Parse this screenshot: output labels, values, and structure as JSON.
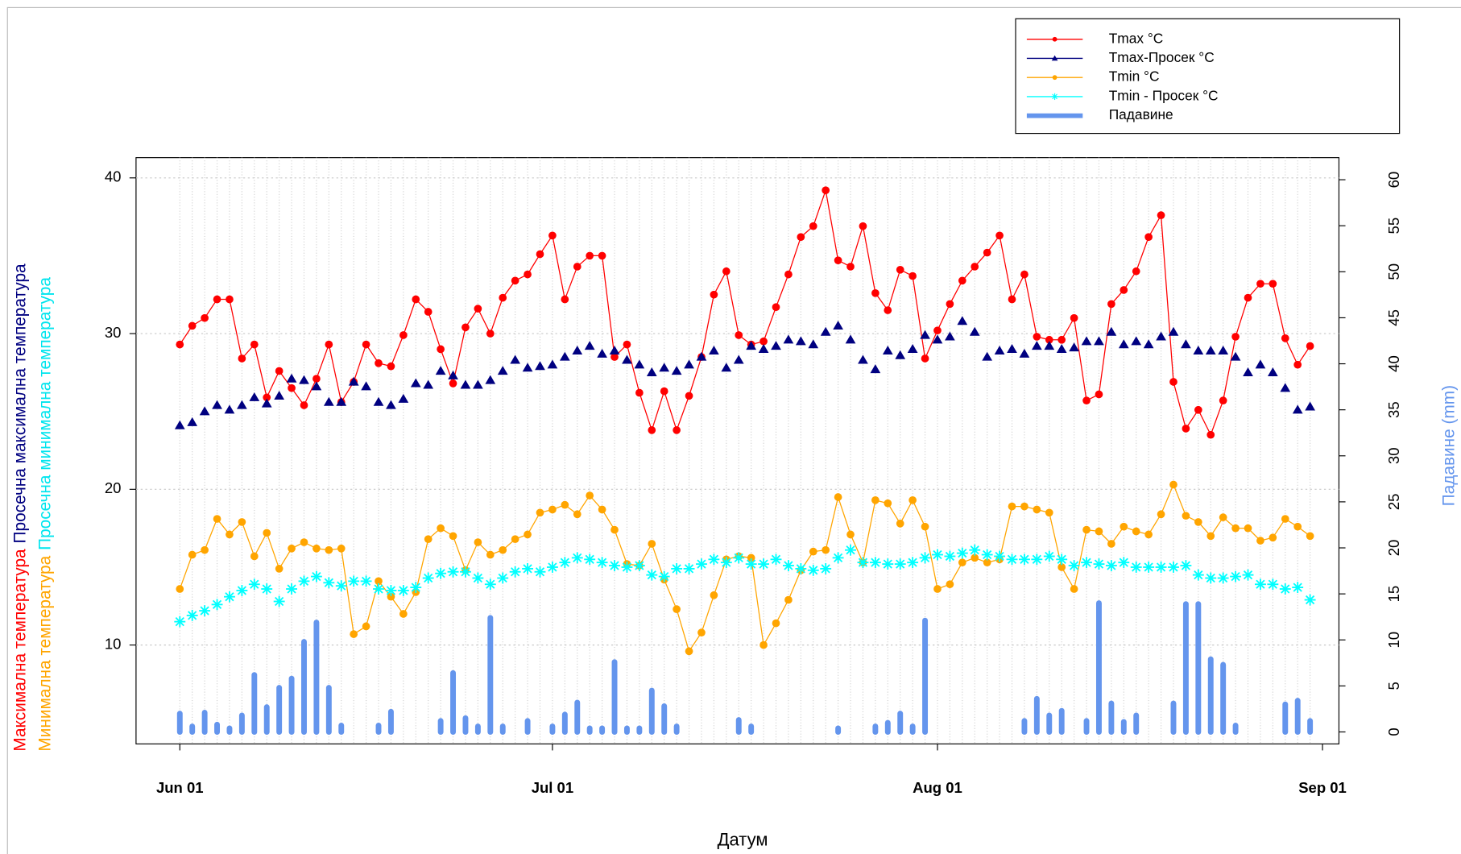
{
  "chart_data": {
    "type": "line",
    "xlabel": "Датум",
    "y_axis_labels": [
      [
        {
          "text": "Максимална температура",
          "color": "#ff0000"
        },
        {
          "text": "Просечна максимална температура",
          "color": "#000080"
        }
      ],
      [
        {
          "text": "Минимална температура",
          "color": "#ffa500"
        },
        {
          "text": "Просечна минимална температура",
          "color": "#00e5ee"
        }
      ]
    ],
    "y2label": "Падавине (mm)",
    "y2label_color": "#6495ed",
    "legend": "top-right",
    "grid": true,
    "x": [
      "Jun 01",
      "Jun 02",
      "Jun 03",
      "Jun 04",
      "Jun 05",
      "Jun 06",
      "Jun 07",
      "Jun 08",
      "Jun 09",
      "Jun 10",
      "Jun 11",
      "Jun 12",
      "Jun 13",
      "Jun 14",
      "Jun 15",
      "Jun 16",
      "Jun 17",
      "Jun 18",
      "Jun 19",
      "Jun 20",
      "Jun 21",
      "Jun 22",
      "Jun 23",
      "Jun 24",
      "Jun 25",
      "Jun 26",
      "Jun 27",
      "Jun 28",
      "Jun 29",
      "Jun 30",
      "Jul 01",
      "Jul 02",
      "Jul 03",
      "Jul 04",
      "Jul 05",
      "Jul 06",
      "Jul 07",
      "Jul 08",
      "Jul 09",
      "Jul 10",
      "Jul 11",
      "Jul 12",
      "Jul 13",
      "Jul 14",
      "Jul 15",
      "Jul 16",
      "Jul 17",
      "Jul 18",
      "Jul 19",
      "Jul 20",
      "Jul 21",
      "Jul 22",
      "Jul 23",
      "Jul 24",
      "Jul 25",
      "Jul 26",
      "Jul 27",
      "Jul 28",
      "Jul 29",
      "Jul 30",
      "Jul 31",
      "Aug 01",
      "Aug 02",
      "Aug 03",
      "Aug 04",
      "Aug 05",
      "Aug 06",
      "Aug 07",
      "Aug 08",
      "Aug 09",
      "Aug 10",
      "Aug 11",
      "Aug 12",
      "Aug 13",
      "Aug 14",
      "Aug 15",
      "Aug 16",
      "Aug 17",
      "Aug 18",
      "Aug 19",
      "Aug 20",
      "Aug 21",
      "Aug 22",
      "Aug 23",
      "Aug 24",
      "Aug 25",
      "Aug 26",
      "Aug 27",
      "Aug 28",
      "Aug 29",
      "Aug 30",
      "Aug 31"
    ],
    "xticks": [
      "Jun 01",
      "Jul 01",
      "Aug 01",
      "Sep 01"
    ],
    "ylim": [
      3.65,
      41.3
    ],
    "yticks": [
      10,
      20,
      30,
      40
    ],
    "y2lim": [
      -1.3,
      62.4
    ],
    "y2ticks": [
      0,
      5,
      10,
      15,
      20,
      25,
      30,
      35,
      40,
      45,
      50,
      55,
      60
    ],
    "series": [
      {
        "name": "Tmax °C",
        "color": "#ff0000",
        "marker": "circle",
        "lines": true,
        "values": [
          29.3,
          30.5,
          31.0,
          32.2,
          32.2,
          28.4,
          29.3,
          25.9,
          27.6,
          26.5,
          25.4,
          27.1,
          29.3,
          25.6,
          26.9,
          29.3,
          28.1,
          27.9,
          29.9,
          32.2,
          31.4,
          29.0,
          26.8,
          30.4,
          31.6,
          30.0,
          32.3,
          33.4,
          33.8,
          35.1,
          36.3,
          32.2,
          34.3,
          35.0,
          35.0,
          28.5,
          29.3,
          26.2,
          23.8,
          26.3,
          23.8,
          26.0,
          28.5,
          32.5,
          34.0,
          29.9,
          29.3,
          29.5,
          31.7,
          33.8,
          36.2,
          36.9,
          39.2,
          34.7,
          34.3,
          36.9,
          32.6,
          31.5,
          34.1,
          33.7,
          28.4,
          30.2,
          31.9,
          33.4,
          34.3,
          35.2,
          36.3,
          32.2,
          33.8,
          29.8,
          29.6,
          29.6,
          31.0,
          25.7,
          26.1,
          31.9,
          32.8,
          34.0,
          36.2,
          37.6,
          26.9,
          23.9,
          25.1,
          23.5,
          25.7,
          29.8,
          32.3,
          33.2,
          33.2,
          29.7,
          28.0,
          29.2
        ]
      },
      {
        "name": "Tmax-Просек °C",
        "color": "#000080",
        "marker": "triangle",
        "lines": false,
        "values": [
          24.1,
          24.3,
          25.0,
          25.4,
          25.1,
          25.4,
          25.9,
          25.5,
          26.0,
          27.1,
          27.0,
          26.6,
          25.6,
          25.6,
          26.9,
          26.6,
          25.6,
          25.4,
          25.8,
          26.8,
          26.7,
          27.6,
          27.3,
          26.7,
          26.7,
          27.0,
          27.6,
          28.3,
          27.8,
          27.9,
          28.0,
          28.5,
          28.9,
          29.2,
          28.7,
          28.9,
          28.3,
          28.0,
          27.5,
          27.8,
          27.6,
          28.0,
          28.5,
          28.9,
          27.8,
          28.3,
          29.2,
          29.0,
          29.2,
          29.6,
          29.5,
          29.3,
          30.1,
          30.5,
          29.6,
          28.3,
          27.7,
          28.9,
          28.6,
          29.0,
          29.9,
          29.6,
          29.8,
          30.8,
          30.1,
          28.5,
          28.9,
          29.0,
          28.7,
          29.2,
          29.2,
          29.0,
          29.1,
          29.5,
          29.5,
          30.1,
          29.3,
          29.5,
          29.3,
          29.8,
          30.1,
          29.3,
          28.9,
          28.9,
          28.9,
          28.5,
          27.5,
          28.0,
          27.5,
          26.5,
          25.1,
          25.3
        ]
      },
      {
        "name": "Tmin °C",
        "color": "#ffa500",
        "marker": "circle",
        "lines": true,
        "values": [
          13.6,
          15.8,
          16.1,
          18.1,
          17.1,
          17.9,
          15.7,
          17.2,
          14.9,
          16.2,
          16.6,
          16.2,
          16.1,
          16.2,
          10.7,
          11.2,
          14.1,
          13.1,
          12.0,
          13.4,
          16.8,
          17.5,
          17.0,
          14.8,
          16.6,
          15.8,
          16.1,
          16.8,
          17.1,
          18.5,
          18.7,
          19.0,
          18.4,
          19.6,
          18.7,
          17.4,
          15.2,
          15.1,
          16.5,
          14.2,
          12.3,
          9.6,
          10.8,
          13.2,
          15.5,
          15.7,
          15.6,
          10.0,
          11.4,
          12.9,
          14.8,
          16.0,
          16.1,
          19.5,
          17.1,
          15.3,
          19.3,
          19.1,
          17.8,
          19.3,
          17.6,
          13.6,
          13.9,
          15.3,
          15.6,
          15.3,
          15.5,
          18.9,
          18.9,
          18.7,
          18.5,
          15.0,
          13.6,
          17.4,
          17.3,
          16.5,
          17.6,
          17.3,
          17.1,
          18.4,
          20.3,
          18.3,
          17.9,
          17.0,
          18.2,
          17.5,
          17.5,
          16.7,
          16.9,
          18.1,
          17.6,
          17.0
        ]
      },
      {
        "name": "Tmin - Просек °C",
        "color": "#00ffff",
        "marker": "star",
        "lines": false,
        "values": [
          11.5,
          11.9,
          12.2,
          12.6,
          13.1,
          13.5,
          13.9,
          13.6,
          12.8,
          13.6,
          14.1,
          14.4,
          14.0,
          13.8,
          14.1,
          14.1,
          13.6,
          13.5,
          13.5,
          13.7,
          14.3,
          14.6,
          14.7,
          14.7,
          14.3,
          13.9,
          14.3,
          14.7,
          14.9,
          14.7,
          15.0,
          15.3,
          15.6,
          15.5,
          15.3,
          15.1,
          15.0,
          15.1,
          14.5,
          14.4,
          14.9,
          14.9,
          15.2,
          15.5,
          15.3,
          15.6,
          15.2,
          15.2,
          15.5,
          15.1,
          14.9,
          14.8,
          14.9,
          15.6,
          16.1,
          15.3,
          15.3,
          15.2,
          15.2,
          15.3,
          15.6,
          15.8,
          15.7,
          15.9,
          16.1,
          15.8,
          15.7,
          15.5,
          15.5,
          15.5,
          15.7,
          15.5,
          15.1,
          15.3,
          15.2,
          15.1,
          15.3,
          15.0,
          15.0,
          15.0,
          15.0,
          15.1,
          14.5,
          14.3,
          14.3,
          14.4,
          14.5,
          13.9,
          13.9,
          13.6,
          13.7,
          12.9
        ]
      },
      {
        "name": "Падавине",
        "color": "#6495ed",
        "marker": "bar",
        "lines": false,
        "axis": "y2",
        "values": [
          2,
          0.6,
          2.1,
          0.8,
          0.4,
          1.8,
          6.2,
          2.7,
          4.8,
          5.8,
          9.8,
          11.9,
          4.8,
          0.7,
          null,
          null,
          0.7,
          2.2,
          null,
          null,
          null,
          1.2,
          6.4,
          1.5,
          0.6,
          12.4,
          0.6,
          null,
          1.2,
          null,
          0.6,
          1.9,
          3.2,
          0.4,
          0.4,
          7.6,
          0.4,
          0.4,
          4.5,
          2.8,
          0.6,
          null,
          null,
          null,
          null,
          1.3,
          0.6,
          null,
          null,
          null,
          null,
          null,
          null,
          0.4,
          null,
          null,
          0.6,
          1.0,
          2,
          0.6,
          12.1,
          null,
          null,
          null,
          null,
          null,
          null,
          null,
          1.2,
          3.6,
          1.8,
          2.3,
          null,
          1.2,
          14,
          3.1,
          1.1,
          1.8,
          null,
          null,
          3.1,
          13.9,
          13.9,
          7.9,
          7.3,
          0.7,
          null,
          null,
          null,
          3.0,
          3.4,
          1.2
        ]
      }
    ]
  }
}
